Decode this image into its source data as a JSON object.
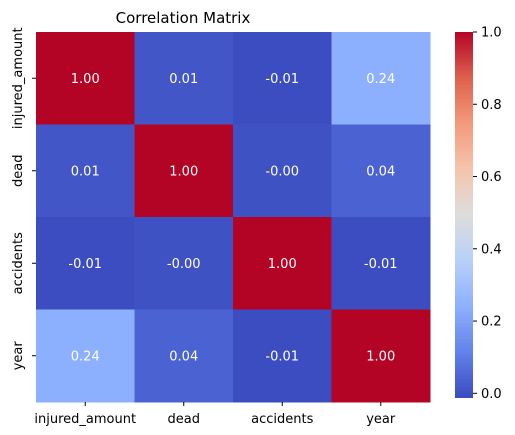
{
  "chart_data": {
    "type": "heatmap",
    "title": "Correlation Matrix",
    "xlabel": "",
    "ylabel": "",
    "x_categories": [
      "injured_amount",
      "dead",
      "accidents",
      "year"
    ],
    "y_categories": [
      "injured_amount",
      "dead",
      "accidents",
      "year"
    ],
    "values": [
      [
        1.0,
        0.01,
        -0.01,
        0.24
      ],
      [
        0.01,
        1.0,
        0.0,
        0.04
      ],
      [
        -0.01,
        0.0,
        1.0,
        -0.01
      ],
      [
        0.24,
        0.04,
        -0.01,
        1.0
      ]
    ],
    "annotations": [
      [
        "1.00",
        "0.01",
        "-0.01",
        "0.24"
      ],
      [
        "0.01",
        "1.00",
        "-0.00",
        "0.04"
      ],
      [
        "-0.01",
        "-0.00",
        "1.00",
        "-0.01"
      ],
      [
        "0.24",
        "0.04",
        "-0.01",
        "1.00"
      ]
    ],
    "colormap": "coolwarm",
    "colorbar": {
      "range": [
        -0.013,
        1.0
      ],
      "ticks": [
        0.0,
        0.2,
        0.4,
        0.6,
        0.8,
        1.0
      ],
      "tick_labels": [
        "0.0",
        "0.2",
        "0.4",
        "0.6",
        "0.8",
        "1.0"
      ]
    },
    "colors": {
      "low": "#3b4cc0",
      "mid": "#dddddd",
      "high": "#b40426"
    }
  }
}
